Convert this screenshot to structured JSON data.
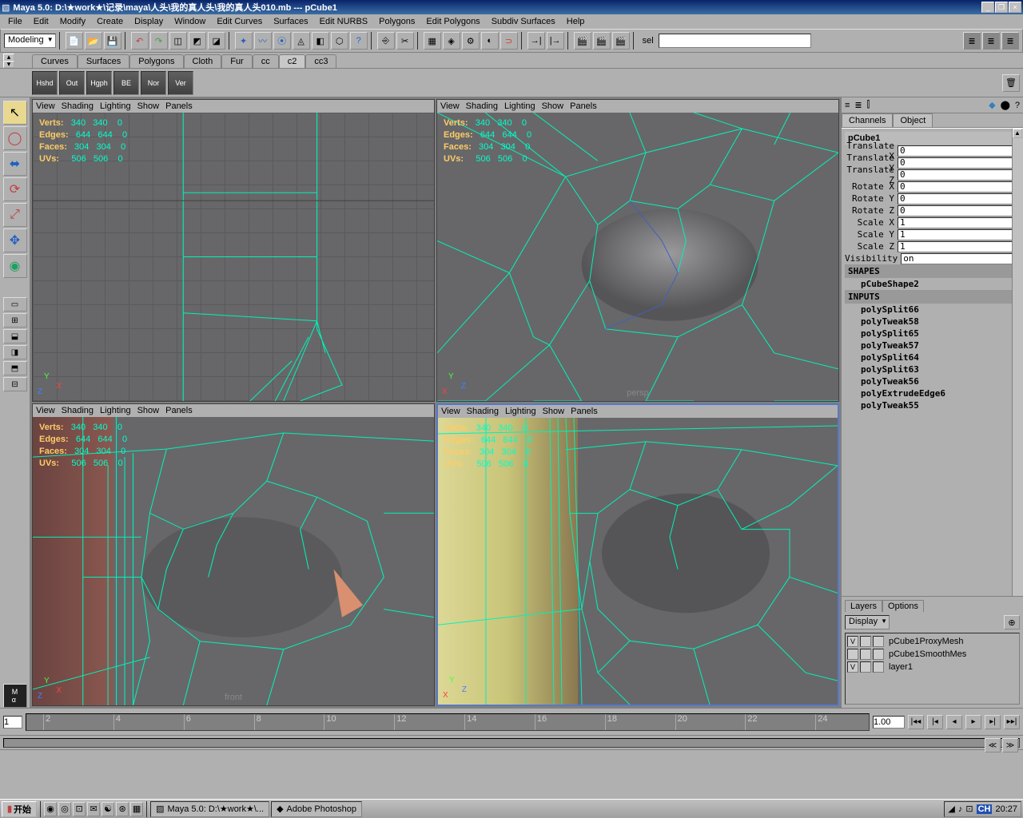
{
  "title": "Maya 5.0: D:\\★work★\\记录\\maya\\人头\\我的真人头\\我的真人头010.mb --- pCube1",
  "menus": [
    "File",
    "Edit",
    "Modify",
    "Create",
    "Display",
    "Window",
    "Edit Curves",
    "Surfaces",
    "Edit NURBS",
    "Polygons",
    "Edit Polygons",
    "Subdiv Surfaces",
    "Help"
  ],
  "mode_dropdown": "Modeling",
  "sel_label": "sel",
  "shelf_tabs": [
    "Curves",
    "Surfaces",
    "Polygons",
    "Cloth",
    "Fur",
    "cc",
    "c2",
    "cc3"
  ],
  "shelf_active": "c2",
  "shelf_buttons": [
    "Hshd",
    "Out",
    "Hgph",
    "BE",
    "Nor",
    "Ver"
  ],
  "viewport_menus": [
    "View",
    "Shading",
    "Lighting",
    "Show",
    "Panels"
  ],
  "hud": {
    "rows": [
      {
        "label": "Verts:",
        "a": "340",
        "b": "340",
        "c": "0"
      },
      {
        "label": "Edges:",
        "a": "644",
        "b": "644",
        "c": "0"
      },
      {
        "label": "Faces:",
        "a": "304",
        "b": "304",
        "c": "0"
      },
      {
        "label": "UVs:",
        "a": "506",
        "b": "506",
        "c": "0"
      }
    ]
  },
  "cameras": {
    "tl": "",
    "tr": "persp",
    "bl": "front",
    "br": ""
  },
  "channel": {
    "tabs": [
      "Channels",
      "Object"
    ],
    "object": "pCube1",
    "attrs": [
      {
        "label": "Translate X",
        "val": "0"
      },
      {
        "label": "Translate Y",
        "val": "0"
      },
      {
        "label": "Translate Z",
        "val": "0"
      },
      {
        "label": "Rotate X",
        "val": "0"
      },
      {
        "label": "Rotate Y",
        "val": "0"
      },
      {
        "label": "Rotate Z",
        "val": "0"
      },
      {
        "label": "Scale X",
        "val": "1"
      },
      {
        "label": "Scale Y",
        "val": "1"
      },
      {
        "label": "Scale Z",
        "val": "1"
      },
      {
        "label": "Visibility",
        "val": "on"
      }
    ],
    "shapes_head": "SHAPES",
    "shape": "pCubeShape2",
    "inputs_head": "INPUTS",
    "inputs": [
      "polySplit66",
      "polyTweak58",
      "polySplit65",
      "polyTweak57",
      "polySplit64",
      "polySplit63",
      "polyTweak56",
      "polyExtrudeEdge6",
      "polyTweak55"
    ]
  },
  "layers": {
    "tabs": [
      "Layers",
      "Options"
    ],
    "display": "Display",
    "items": [
      {
        "v": "V",
        "name": "pCube1ProxyMesh"
      },
      {
        "v": "",
        "name": "pCube1SmoothMes"
      },
      {
        "v": "V",
        "name": "layer1"
      }
    ]
  },
  "timeline": {
    "ticks": [
      "2",
      "4",
      "6",
      "8",
      "10",
      "12",
      "14",
      "16",
      "18",
      "20",
      "22",
      "24"
    ],
    "current": "1",
    "rate": "1.00"
  },
  "taskbar": {
    "start": "开始",
    "tasks": [
      "Maya 5.0: D:\\★work★\\...",
      "Adobe Photoshop"
    ],
    "clock": "20:27",
    "ime": "CH"
  },
  "colors": {
    "wire": "#00f2b8",
    "vp_bg": "#676769",
    "hud": "#00ffcc",
    "hud_label": "#ffcc66"
  }
}
